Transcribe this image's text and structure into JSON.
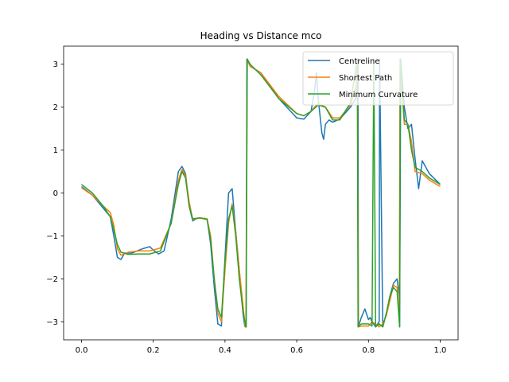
{
  "chart_data": {
    "type": "line",
    "title": "Heading vs Distance mco",
    "xlabel": "",
    "ylabel": "",
    "xlim": [
      -0.05,
      1.05
    ],
    "ylim": [
      -3.42,
      3.42
    ],
    "xticks": [
      0.0,
      0.2,
      0.4,
      0.6,
      0.8,
      1.0
    ],
    "xtick_labels": [
      "0.0",
      "0.2",
      "0.4",
      "0.6",
      "0.8",
      "1.0"
    ],
    "yticks": [
      -3,
      -2,
      -1,
      0,
      1,
      2,
      3
    ],
    "ytick_labels": [
      "−3",
      "−2",
      "−1",
      "0",
      "1",
      "2",
      "3"
    ],
    "grid": false,
    "legend_position": "top-right",
    "series": [
      {
        "name": "Centreline",
        "color": "#1f77b4",
        "x": [
          0.0,
          0.03,
          0.06,
          0.08,
          0.09,
          0.1,
          0.11,
          0.12,
          0.14,
          0.17,
          0.19,
          0.2,
          0.215,
          0.23,
          0.25,
          0.27,
          0.28,
          0.29,
          0.3,
          0.31,
          0.32,
          0.33,
          0.35,
          0.36,
          0.37,
          0.38,
          0.39,
          0.4,
          0.41,
          0.42,
          0.43,
          0.44,
          0.45,
          0.455,
          0.459,
          0.461,
          0.47,
          0.5,
          0.55,
          0.6,
          0.62,
          0.64,
          0.65,
          0.655,
          0.66,
          0.67,
          0.675,
          0.68,
          0.69,
          0.7,
          0.72,
          0.75,
          0.765,
          0.768,
          0.771,
          0.772,
          0.78,
          0.79,
          0.8,
          0.805,
          0.81,
          0.82,
          0.83,
          0.831,
          0.84,
          0.85,
          0.86,
          0.87,
          0.88,
          0.886,
          0.887,
          0.89,
          0.9,
          0.91,
          0.92,
          0.93,
          0.94,
          0.95,
          0.97,
          1.0
        ],
        "values": [
          0.15,
          -0.05,
          -0.35,
          -0.55,
          -1.0,
          -1.5,
          -1.55,
          -1.4,
          -1.4,
          -1.3,
          -1.25,
          -1.33,
          -1.42,
          -1.35,
          -0.6,
          0.5,
          0.62,
          0.45,
          -0.3,
          -0.65,
          -0.6,
          -0.58,
          -0.6,
          -1.2,
          -2.2,
          -3.05,
          -3.1,
          -1.5,
          0.0,
          0.1,
          -0.9,
          -1.8,
          -2.8,
          -3.1,
          -3.12,
          3.12,
          2.95,
          2.8,
          2.2,
          1.75,
          1.72,
          1.9,
          2.4,
          2.8,
          2.2,
          1.4,
          1.25,
          1.6,
          1.7,
          1.65,
          1.72,
          2.0,
          2.2,
          2.9,
          3.12,
          -3.12,
          -2.9,
          -2.7,
          -2.95,
          -2.9,
          -3.0,
          -3.12,
          -3.0,
          3.12,
          -3.12,
          -2.8,
          -2.4,
          -2.1,
          -2.0,
          -2.4,
          -3.12,
          3.12,
          2.0,
          1.5,
          1.6,
          0.8,
          0.1,
          0.75,
          0.45,
          0.2
        ]
      },
      {
        "name": "Shortest Path",
        "color": "#ff7f0e",
        "x": [
          0.0,
          0.03,
          0.06,
          0.08,
          0.09,
          0.1,
          0.11,
          0.13,
          0.16,
          0.19,
          0.22,
          0.25,
          0.27,
          0.28,
          0.29,
          0.3,
          0.31,
          0.33,
          0.35,
          0.36,
          0.37,
          0.38,
          0.39,
          0.4,
          0.41,
          0.42,
          0.43,
          0.44,
          0.45,
          0.456,
          0.458,
          0.462,
          0.47,
          0.5,
          0.55,
          0.6,
          0.62,
          0.64,
          0.66,
          0.68,
          0.7,
          0.72,
          0.75,
          0.766,
          0.769,
          0.772,
          0.78,
          0.8,
          0.81,
          0.82,
          0.83,
          0.84,
          0.85,
          0.86,
          0.87,
          0.88,
          0.886,
          0.888,
          0.89,
          0.9,
          0.91,
          0.92,
          0.93,
          0.95,
          0.97,
          1.0
        ],
        "values": [
          0.12,
          -0.05,
          -0.3,
          -0.45,
          -0.75,
          -1.3,
          -1.45,
          -1.38,
          -1.35,
          -1.35,
          -1.28,
          -0.7,
          0.3,
          0.55,
          0.4,
          -0.2,
          -0.62,
          -0.58,
          -0.6,
          -1.0,
          -2.0,
          -2.8,
          -3.0,
          -1.8,
          -0.7,
          -0.25,
          -0.9,
          -1.8,
          -2.6,
          -3.12,
          -3.12,
          3.12,
          2.95,
          2.8,
          2.25,
          1.85,
          1.8,
          1.9,
          2.1,
          2.0,
          1.75,
          1.75,
          2.05,
          2.5,
          3.12,
          -3.12,
          -3.1,
          -3.1,
          -3.0,
          -3.05,
          -3.12,
          -3.05,
          -2.85,
          -2.5,
          -2.15,
          -2.2,
          -3.0,
          3.12,
          2.8,
          1.6,
          1.6,
          1.2,
          0.5,
          0.45,
          0.3,
          0.15
        ]
      },
      {
        "name": "Minimum Curvature",
        "color": "#2ca02c",
        "x": [
          0.0,
          0.03,
          0.06,
          0.08,
          0.09,
          0.1,
          0.11,
          0.13,
          0.16,
          0.19,
          0.22,
          0.25,
          0.27,
          0.28,
          0.29,
          0.3,
          0.31,
          0.33,
          0.35,
          0.36,
          0.37,
          0.38,
          0.39,
          0.4,
          0.41,
          0.42,
          0.43,
          0.44,
          0.45,
          0.458,
          0.459,
          0.462,
          0.47,
          0.5,
          0.55,
          0.6,
          0.62,
          0.64,
          0.66,
          0.68,
          0.7,
          0.72,
          0.75,
          0.767,
          0.769,
          0.771,
          0.78,
          0.8,
          0.81,
          0.815,
          0.82,
          0.83,
          0.84,
          0.85,
          0.86,
          0.87,
          0.88,
          0.887,
          0.889,
          0.89,
          0.9,
          0.91,
          0.92,
          0.93,
          0.95,
          0.97,
          1.0
        ],
        "values": [
          0.2,
          0.0,
          -0.3,
          -0.55,
          -0.85,
          -1.2,
          -1.38,
          -1.43,
          -1.42,
          -1.42,
          -1.35,
          -0.7,
          0.2,
          0.5,
          0.35,
          -0.3,
          -0.6,
          -0.58,
          -0.62,
          -1.1,
          -2.0,
          -2.7,
          -2.9,
          -1.6,
          -0.6,
          -0.3,
          -1.0,
          -2.0,
          -2.75,
          -3.12,
          -3.12,
          3.12,
          3.0,
          2.75,
          2.2,
          1.85,
          1.8,
          1.9,
          2.05,
          2.0,
          1.7,
          1.7,
          2.1,
          3.0,
          3.12,
          -3.12,
          -3.05,
          -3.05,
          -3.1,
          3.12,
          -3.12,
          -3.05,
          -3.12,
          -2.8,
          -2.4,
          -2.2,
          -2.3,
          -3.12,
          3.12,
          3.0,
          1.7,
          1.6,
          1.0,
          0.6,
          0.5,
          0.35,
          0.2
        ]
      }
    ]
  }
}
